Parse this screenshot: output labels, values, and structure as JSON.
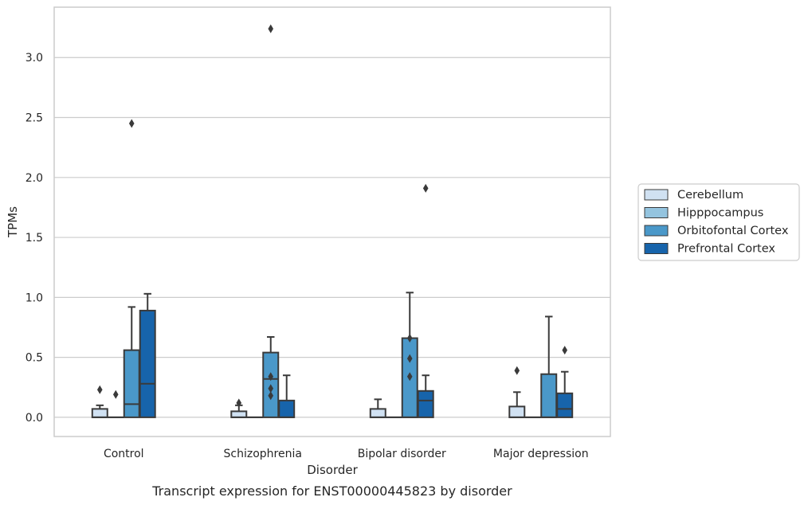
{
  "chart_data": {
    "type": "box",
    "caption": "Transcript expression for ENST00000445823 by disorder",
    "xlabel": "Disorder",
    "ylabel": "TPMs",
    "ylim": [
      -0.16,
      3.42
    ],
    "yticks": [
      0.0,
      0.5,
      1.0,
      1.5,
      2.0,
      2.5,
      3.0
    ],
    "ytick_labels": [
      "0.0",
      "0.5",
      "1.0",
      "1.5",
      "2.0",
      "2.5",
      "3.0"
    ],
    "grid": "horizontal",
    "legend_position": "right",
    "categories": [
      "Control",
      "Schizophrenia",
      "Bipolar disorder",
      "Major depression"
    ],
    "series": [
      {
        "name": "Cerebellum",
        "color": "#d0e1f2",
        "boxes": [
          {
            "whislo": 0.0,
            "q1": 0.0,
            "med": 0.0,
            "q3": 0.07,
            "whishi": 0.1,
            "fliers": [
              0.23
            ]
          },
          {
            "whislo": 0.0,
            "q1": 0.0,
            "med": 0.0,
            "q3": 0.05,
            "whishi": 0.1,
            "fliers": [
              0.12
            ]
          },
          {
            "whislo": 0.0,
            "q1": 0.0,
            "med": 0.0,
            "q3": 0.07,
            "whishi": 0.15,
            "fliers": []
          },
          {
            "whislo": 0.0,
            "q1": 0.0,
            "med": 0.0,
            "q3": 0.09,
            "whishi": 0.21,
            "fliers": [
              0.39
            ]
          }
        ]
      },
      {
        "name": "Hipppocampus",
        "color": "#94c4df",
        "boxes": [
          {
            "whislo": 0.0,
            "q1": 0.0,
            "med": 0.0,
            "q3": 0.0,
            "whishi": 0.0,
            "fliers": [
              0.19
            ]
          },
          {
            "whislo": 0.0,
            "q1": 0.0,
            "med": 0.0,
            "q3": 0.0,
            "whishi": 0.0,
            "fliers": []
          },
          {
            "whislo": 0.0,
            "q1": 0.0,
            "med": 0.0,
            "q3": 0.0,
            "whishi": 0.0,
            "fliers": []
          },
          {
            "whislo": 0.0,
            "q1": 0.0,
            "med": 0.0,
            "q3": 0.0,
            "whishi": 0.0,
            "fliers": []
          }
        ]
      },
      {
        "name": "Orbitofontal Cortex",
        "color": "#4a98c9",
        "boxes": [
          {
            "whislo": 0.0,
            "q1": 0.0,
            "med": 0.11,
            "q3": 0.56,
            "whishi": 0.92,
            "fliers": [
              2.45
            ]
          },
          {
            "whislo": 0.0,
            "q1": 0.0,
            "med": 0.32,
            "q3": 0.54,
            "whishi": 0.67,
            "fliers": [
              0.18,
              0.24,
              0.34,
              3.24
            ]
          },
          {
            "whislo": 0.0,
            "q1": 0.0,
            "med": 0.0,
            "q3": 0.66,
            "whishi": 1.04,
            "fliers": [
              0.34,
              0.49,
              0.66
            ]
          },
          {
            "whislo": 0.0,
            "q1": 0.0,
            "med": 0.0,
            "q3": 0.36,
            "whishi": 0.84,
            "fliers": []
          }
        ]
      },
      {
        "name": "Prefrontal Cortex",
        "color": "#1764ab",
        "boxes": [
          {
            "whislo": 0.0,
            "q1": 0.0,
            "med": 0.28,
            "q3": 0.89,
            "whishi": 1.03,
            "fliers": []
          },
          {
            "whislo": 0.0,
            "q1": 0.0,
            "med": 0.0,
            "q3": 0.14,
            "whishi": 0.35,
            "fliers": []
          },
          {
            "whislo": 0.0,
            "q1": 0.0,
            "med": 0.14,
            "q3": 0.22,
            "whishi": 0.35,
            "fliers": [
              1.91
            ]
          },
          {
            "whislo": 0.0,
            "q1": 0.0,
            "med": 0.07,
            "q3": 0.2,
            "whishi": 0.38,
            "fliers": [
              0.56
            ]
          }
        ]
      }
    ]
  },
  "style": {
    "edge_color": "#3a3a3a",
    "grid_color": "#cccccc",
    "frame_color": "#cccccc"
  }
}
